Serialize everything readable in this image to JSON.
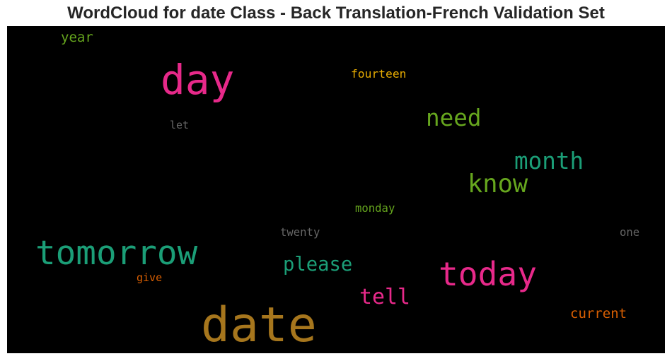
{
  "chart_data": {
    "type": "wordcloud",
    "title": "WordCloud for date Class - Back Translation-French Validation Set",
    "background": "#000000",
    "words": [
      {
        "text": "date",
        "weight": 1.0,
        "color": "#a6761d"
      },
      {
        "text": "day",
        "weight": 0.85,
        "color": "#e7298a"
      },
      {
        "text": "tomorrow",
        "weight": 0.7,
        "color": "#1b9e77"
      },
      {
        "text": "today",
        "weight": 0.68,
        "color": "#e7298a"
      },
      {
        "text": "know",
        "weight": 0.52,
        "color": "#66a61e"
      },
      {
        "text": "need",
        "weight": 0.48,
        "color": "#66a61e"
      },
      {
        "text": "month",
        "weight": 0.48,
        "color": "#1b9e77"
      },
      {
        "text": "tell",
        "weight": 0.44,
        "color": "#e7298a"
      },
      {
        "text": "please",
        "weight": 0.4,
        "color": "#1b9e77"
      },
      {
        "text": "current",
        "weight": 0.28,
        "color": "#d95f02"
      },
      {
        "text": "year",
        "weight": 0.28,
        "color": "#66a61e"
      },
      {
        "text": "fourteen",
        "weight": 0.24,
        "color": "#e6ab02"
      },
      {
        "text": "monday",
        "weight": 0.23,
        "color": "#66a61e"
      },
      {
        "text": "twenty",
        "weight": 0.23,
        "color": "#666666"
      },
      {
        "text": "one",
        "weight": 0.23,
        "color": "#666666"
      },
      {
        "text": "let",
        "weight": 0.22,
        "color": "#666666"
      },
      {
        "text": "give",
        "weight": 0.22,
        "color": "#d95f02"
      }
    ]
  }
}
